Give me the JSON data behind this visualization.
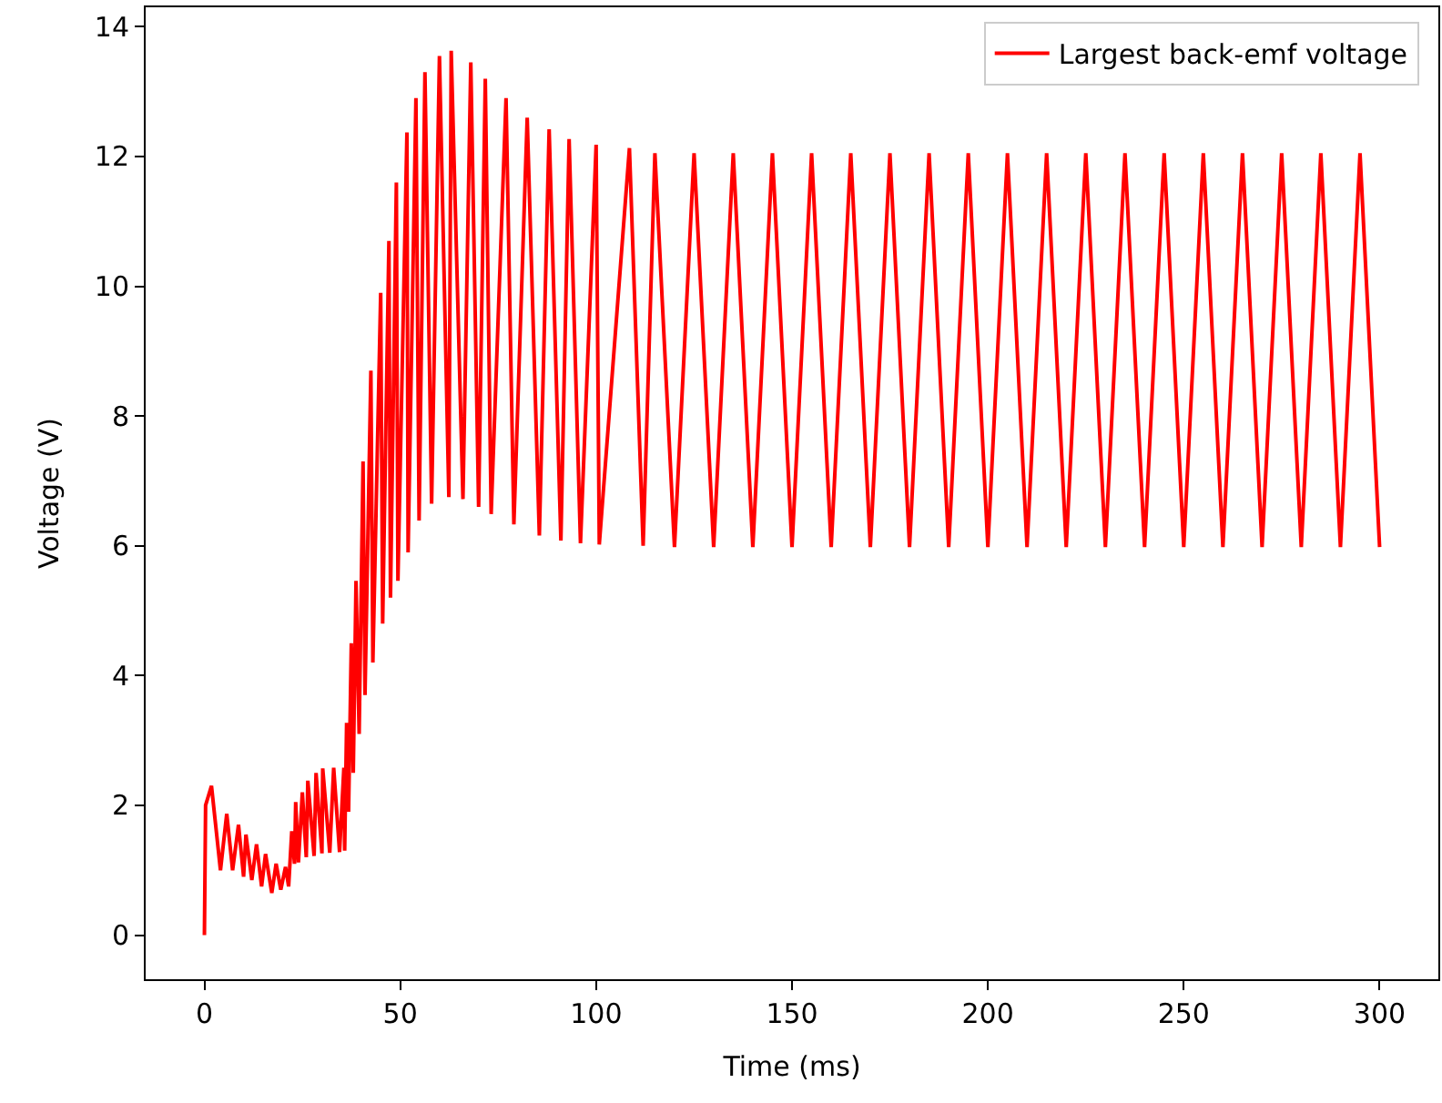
{
  "chart_data": {
    "type": "line",
    "xlabel": "Time (ms)",
    "ylabel": "Voltage (V)",
    "xlim": [
      -15,
      315
    ],
    "ylim": [
      -0.68,
      14.3
    ],
    "xticks": [
      0,
      50,
      100,
      150,
      200,
      250,
      300
    ],
    "yticks": [
      0,
      2,
      4,
      6,
      8,
      10,
      12,
      14
    ],
    "grid": false,
    "legend": "top right",
    "marker": "none",
    "line_style": "solid",
    "series": [
      {
        "name": "Largest back-emf voltage",
        "color": "#ff0000",
        "x": [
          0,
          0.3,
          1.8,
          4.1,
          5.7,
          7.2,
          8.7,
          10,
          10.6,
          12.1,
          13.3,
          14.6,
          15.6,
          17.2,
          18.3,
          19.5,
          20.7,
          21.5,
          22.3,
          23,
          23.3,
          24,
          25,
          26,
          26.4,
          28,
          28.5,
          30,
          30.2,
          32,
          33,
          34.5,
          35.6,
          35.8,
          36.3,
          36.8,
          37.5,
          38,
          38.7,
          39.5,
          40.5,
          41,
          42.5,
          43,
          45,
          45.5,
          47.1,
          47.5,
          49,
          49.4,
          51.7,
          52,
          54,
          54.8,
          56.3,
          58,
          60,
          62.4,
          63,
          66,
          68,
          70,
          71.7,
          73.2,
          77,
          79,
          82.4,
          85.5,
          88,
          91,
          93.1,
          96,
          100,
          100.8,
          108.5,
          112,
          115,
          120,
          125,
          130,
          135,
          140,
          145,
          150,
          155,
          160,
          165,
          170,
          175,
          180,
          185,
          190,
          195,
          200,
          205,
          210,
          215,
          220,
          225,
          230,
          235,
          240,
          245,
          250,
          255,
          260,
          265,
          270,
          275,
          280,
          285,
          290,
          295,
          300
        ],
        "values": [
          0,
          2.0,
          2.3,
          1.0,
          1.87,
          1.0,
          1.7,
          0.9,
          1.55,
          0.85,
          1.4,
          0.75,
          1.25,
          0.65,
          1.1,
          0.7,
          1.05,
          0.75,
          1.6,
          1.1,
          2.05,
          1.12,
          2.2,
          1.2,
          2.38,
          1.22,
          2.5,
          1.26,
          2.57,
          1.27,
          2.58,
          1.28,
          2.58,
          1.3,
          3.27,
          1.9,
          4.5,
          2.5,
          5.46,
          3.1,
          7.3,
          3.7,
          8.7,
          4.2,
          9.9,
          4.8,
          10.7,
          5.2,
          11.6,
          5.46,
          12.37,
          5.9,
          12.9,
          6.39,
          13.3,
          6.65,
          13.55,
          6.75,
          13.63,
          6.72,
          13.45,
          6.6,
          13.2,
          6.49,
          12.9,
          6.33,
          12.6,
          6.16,
          12.42,
          6.08,
          12.27,
          6.04,
          12.18,
          6.02,
          12.13,
          6.0,
          12.05,
          5.98,
          12.05,
          5.98,
          12.05,
          5.98,
          12.05,
          5.98,
          12.05,
          5.98,
          12.05,
          5.98,
          12.05,
          5.98,
          12.05,
          5.98,
          12.05,
          5.98,
          12.05,
          5.98,
          12.05,
          5.98,
          12.05,
          5.98,
          12.05,
          5.98,
          12.05,
          5.98,
          12.05,
          5.98,
          12.05,
          5.98,
          12.05,
          5.98,
          12.05,
          5.98,
          12.05,
          5.98
        ]
      }
    ]
  }
}
